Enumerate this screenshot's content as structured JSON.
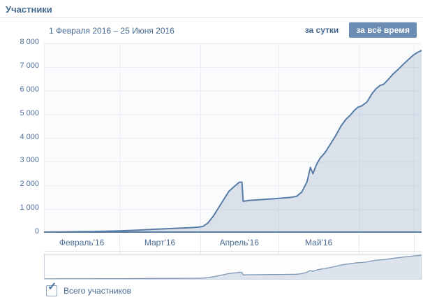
{
  "page": {
    "title": "Участники"
  },
  "controls": {
    "date_range": "1 Февраля 2016 – 25 Июня 2016",
    "daily_button": "за сутки",
    "alltime_button": "за всё время"
  },
  "legend": {
    "checkbox_label": "Всего участников",
    "checked": true
  },
  "icons": {
    "checkmark": "✓"
  },
  "colors": {
    "accent_text": "#45688e",
    "button_bg": "#6b8cb3",
    "button_text": "#ffffff",
    "line": "#587ca8",
    "area_fill": "rgba(90,125,165,0.20)",
    "axis_line": "#5a7ba2",
    "grid": "#e9edf3",
    "plot_bg": "#fafbfc",
    "minimap_line": "#7e97b5",
    "minimap_border": "#c9d4e1"
  },
  "chart_data": {
    "type": "area",
    "title": "Участники",
    "subtitle": "1 Февраля 2016 – 25 Июня 2016",
    "x_unit": "days since 1 Feb 2016",
    "x_domain": [
      0,
      145
    ],
    "ylim": [
      0,
      8000
    ],
    "grid": true,
    "legend_position": "bottom",
    "y_tick_labels": [
      "8 000",
      "7 000",
      "6 000",
      "5 000",
      "4 000",
      "3 000",
      "2 000",
      "1 000",
      "0"
    ],
    "x_tick_labels": [
      "Февраль'16",
      "Март'16",
      "Апрель'16",
      "Май'16",
      ""
    ],
    "month_boundaries": [
      0,
      29,
      60,
      90,
      121,
      142
    ],
    "series": [
      {
        "name": "Всего участников",
        "points": [
          [
            0,
            30
          ],
          [
            8,
            40
          ],
          [
            16,
            50
          ],
          [
            24,
            65
          ],
          [
            29,
            80
          ],
          [
            36,
            110
          ],
          [
            43,
            150
          ],
          [
            50,
            185
          ],
          [
            56,
            215
          ],
          [
            59,
            235
          ],
          [
            61,
            270
          ],
          [
            63,
            420
          ],
          [
            65,
            700
          ],
          [
            67,
            1050
          ],
          [
            69,
            1400
          ],
          [
            71,
            1750
          ],
          [
            73,
            1950
          ],
          [
            75,
            2130
          ],
          [
            76,
            2140
          ],
          [
            76.5,
            1330
          ],
          [
            79,
            1370
          ],
          [
            83,
            1400
          ],
          [
            87,
            1430
          ],
          [
            91,
            1460
          ],
          [
            95,
            1500
          ],
          [
            97,
            1540
          ],
          [
            99,
            1720
          ],
          [
            101,
            2150
          ],
          [
            102.3,
            2760
          ],
          [
            103.3,
            2500
          ],
          [
            104.5,
            2850
          ],
          [
            106,
            3150
          ],
          [
            108,
            3400
          ],
          [
            110,
            3750
          ],
          [
            112,
            4100
          ],
          [
            114,
            4500
          ],
          [
            116,
            4800
          ],
          [
            117.5,
            4950
          ],
          [
            119,
            5150
          ],
          [
            120.5,
            5300
          ],
          [
            122,
            5360
          ],
          [
            124,
            5520
          ],
          [
            126,
            5880
          ],
          [
            127.5,
            6080
          ],
          [
            129,
            6220
          ],
          [
            130.5,
            6280
          ],
          [
            132,
            6450
          ],
          [
            134,
            6700
          ],
          [
            136,
            6900
          ],
          [
            138,
            7120
          ],
          [
            140,
            7320
          ],
          [
            142,
            7520
          ],
          [
            143.5,
            7620
          ],
          [
            145,
            7700
          ]
        ]
      }
    ]
  }
}
